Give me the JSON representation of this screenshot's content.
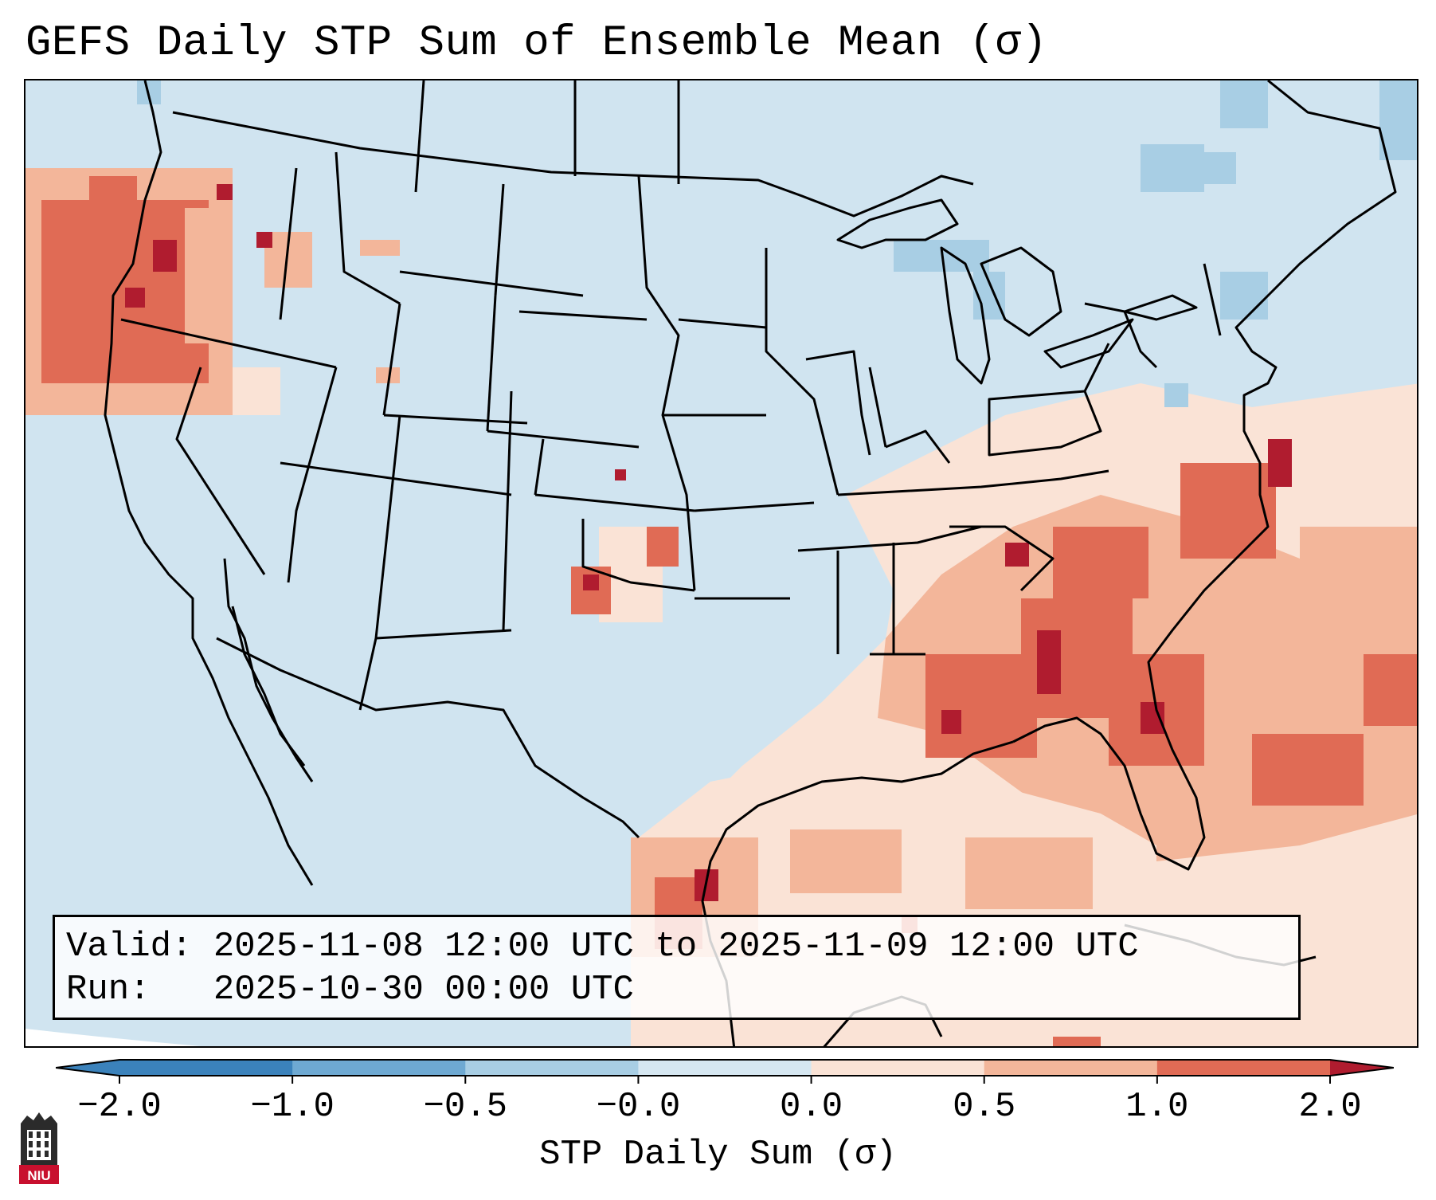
{
  "title": "GEFS Daily STP Sum of Ensemble Mean (σ)",
  "map": {
    "region": "Contiguous United States, northern Mexico, Gulf of Mexico, western Atlantic",
    "colors": {
      "ocean_background": "#d0e4f0",
      "outside_projection": "#ffffff",
      "borders": "#000000"
    },
    "feature_icons": [
      "state-borders-icon",
      "coastlines-icon",
      "country-borders-icon",
      "great-lakes-icon"
    ]
  },
  "info": {
    "valid_line": "Valid: 2025-11-08 12:00 UTC to 2025-11-09 12:00 UTC",
    "run_line": "Run:   2025-10-30 00:00 UTC"
  },
  "colorbar": {
    "label": "STP Daily Sum (σ)",
    "ticks": [
      "−2.0",
      "−1.0",
      "−0.5",
      "−0.0",
      "0.0",
      "0.5",
      "1.0",
      "2.0"
    ],
    "colors": [
      "#3b82bb",
      "#6ea9d2",
      "#a8cee4",
      "#d6e7f1",
      "#fae3d6",
      "#f3b69a",
      "#e06b55",
      "#b01c2f"
    ],
    "extend": "both"
  },
  "logo": {
    "text": "NIU",
    "icon": "university-tower-icon",
    "color": "#c8102e"
  }
}
